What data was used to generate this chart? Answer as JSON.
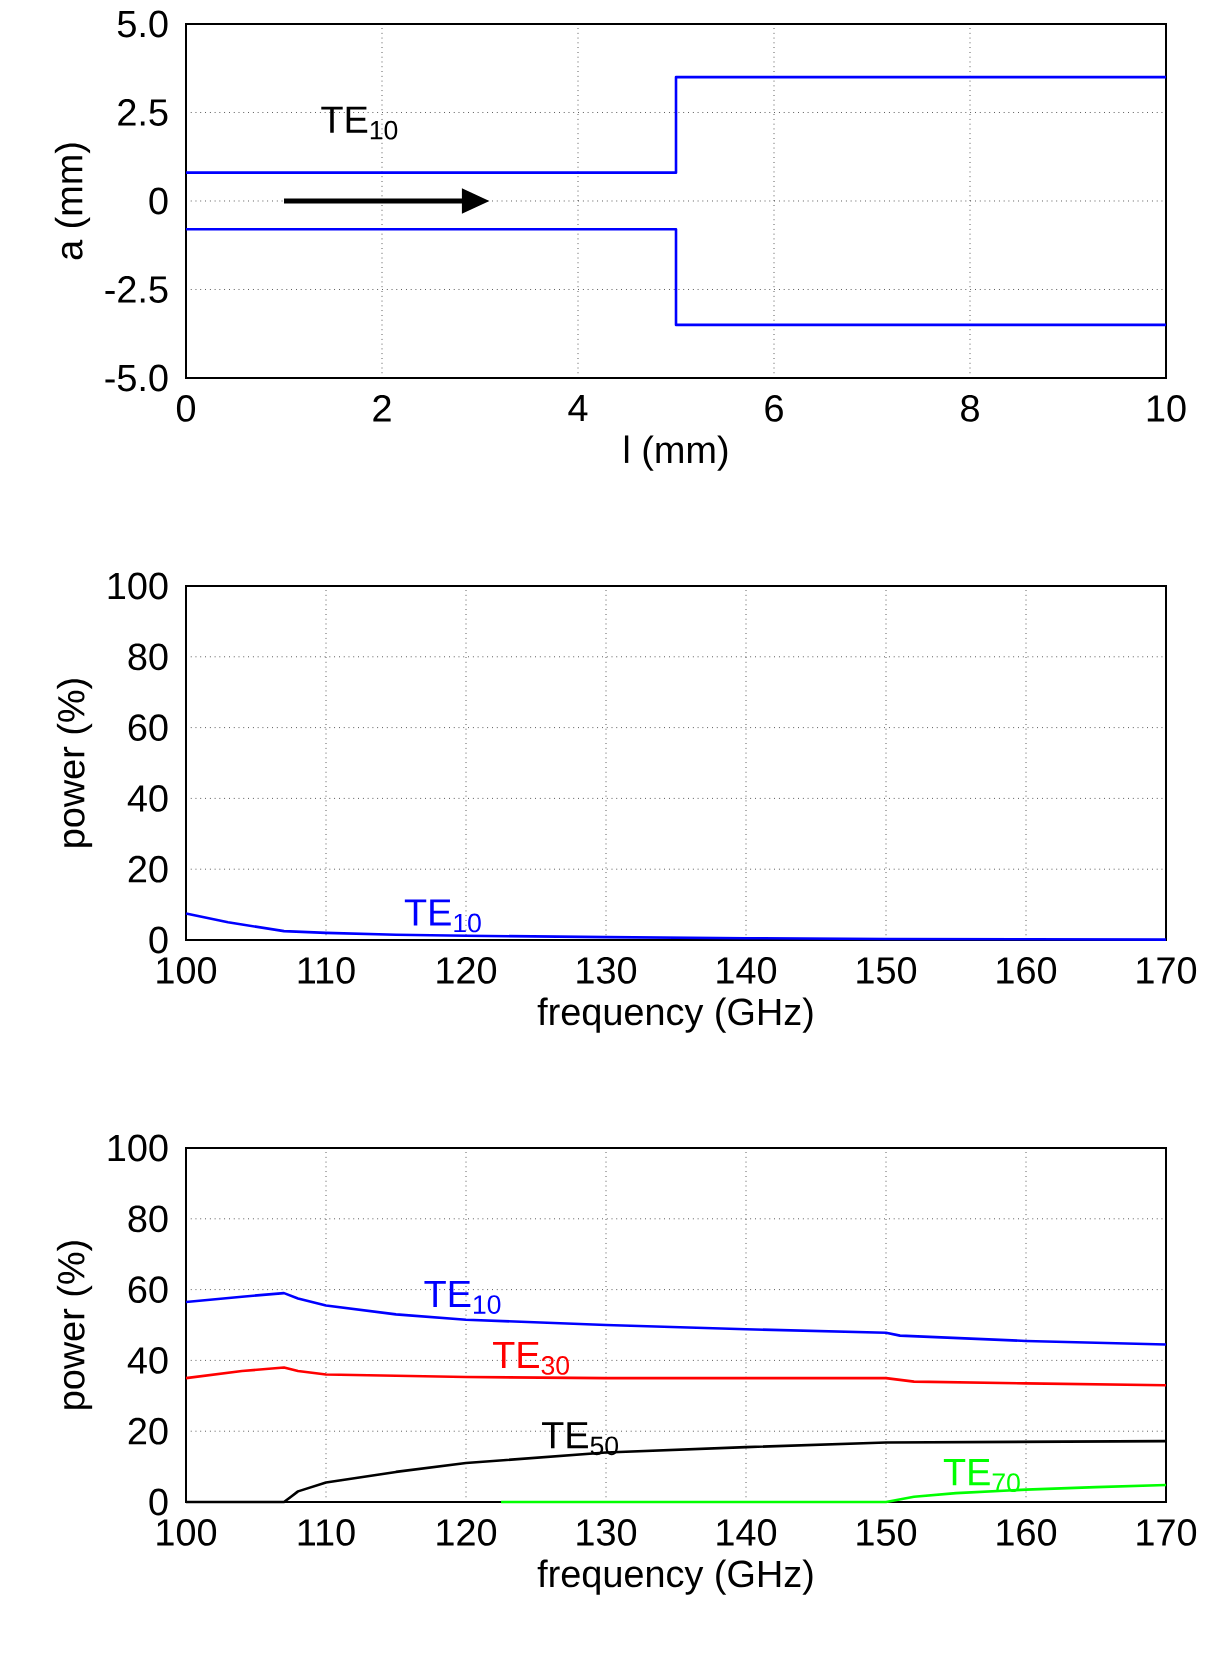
{
  "chart_data": [
    {
      "type": "line",
      "xlabel": "l (mm)",
      "ylabel": "a (mm)",
      "annotations": [
        "TE$_{10}$"
      ],
      "xlim": [
        0,
        10
      ],
      "ylim": [
        -5,
        5
      ],
      "xticks": [
        0,
        2,
        4,
        6,
        8,
        10
      ],
      "yticks": [
        {
          "value": -5,
          "label": "-5.0"
        },
        -2.5,
        0,
        2.5,
        {
          "value": 5,
          "label": "5.0"
        }
      ],
      "grid": true,
      "series": [
        {
          "color": "#0000ff",
          "x": [
            0,
            5,
            5,
            10
          ],
          "values": [
            0.8,
            0.8,
            3.5,
            3.5
          ]
        },
        {
          "color": "#0000ff",
          "x": [
            0,
            5,
            5,
            10
          ],
          "values": [
            -0.8,
            -0.8,
            -3.5,
            -3.5
          ]
        }
      ]
    },
    {
      "type": "line",
      "xlabel": "frequency (GHz)",
      "ylabel": "power (%)",
      "xlim": [
        100,
        170
      ],
      "ylim": [
        0,
        100
      ],
      "xticks": [
        100,
        110,
        120,
        130,
        140,
        150,
        160,
        170
      ],
      "yticks": [
        0,
        20,
        40,
        60,
        80,
        100
      ],
      "grid": true,
      "series": [
        {
          "name": "TE$_{10}$",
          "color": "#0000ff",
          "x": [
            100,
            103,
            107,
            110,
            115,
            120,
            130,
            140,
            150,
            160,
            170
          ],
          "values": [
            7.5,
            5,
            2.5,
            2,
            1.5,
            1.2,
            0.8,
            0.5,
            0.3,
            0.2,
            0.1
          ]
        }
      ]
    },
    {
      "type": "line",
      "xlabel": "frequency (GHz)",
      "ylabel": "power (%)",
      "xlim": [
        100,
        170
      ],
      "ylim": [
        0,
        100
      ],
      "xticks": [
        100,
        110,
        120,
        130,
        140,
        150,
        160,
        170
      ],
      "yticks": [
        0,
        20,
        40,
        60,
        80,
        100
      ],
      "grid": true,
      "series": [
        {
          "name": "TE$_{10}$",
          "color": "#0000ff",
          "x": [
            100,
            104,
            107,
            108,
            110,
            115,
            120,
            130,
            140,
            150,
            151,
            160,
            170
          ],
          "values": [
            56.5,
            58,
            59,
            57.5,
            55.5,
            53,
            51.5,
            50,
            48.8,
            47.8,
            47,
            45.5,
            44.5
          ]
        },
        {
          "name": "TE$_{30}$",
          "color": "#ff0000",
          "x": [
            100,
            104,
            107,
            108,
            110,
            120,
            130,
            150,
            152,
            160,
            170
          ],
          "values": [
            35,
            37,
            38,
            37,
            36,
            35.3,
            35,
            35,
            34,
            33.5,
            33
          ]
        },
        {
          "name": "TE$_{50}$",
          "color": "#000000",
          "x": [
            100,
            107,
            107.5,
            108,
            110,
            115,
            120,
            125,
            130,
            140,
            150,
            160,
            170
          ],
          "values": [
            0,
            0,
            1.5,
            3,
            5.5,
            8.5,
            11,
            12.5,
            14,
            15.5,
            16.8,
            17,
            17.2
          ]
        },
        {
          "name": "TE$_{70}$",
          "color": "#00ff00",
          "x": [
            122.5,
            150,
            152,
            155,
            160,
            165,
            170
          ],
          "values": [
            0,
            0,
            1.5,
            2.5,
            3.5,
            4.2,
            4.8
          ]
        }
      ]
    }
  ]
}
